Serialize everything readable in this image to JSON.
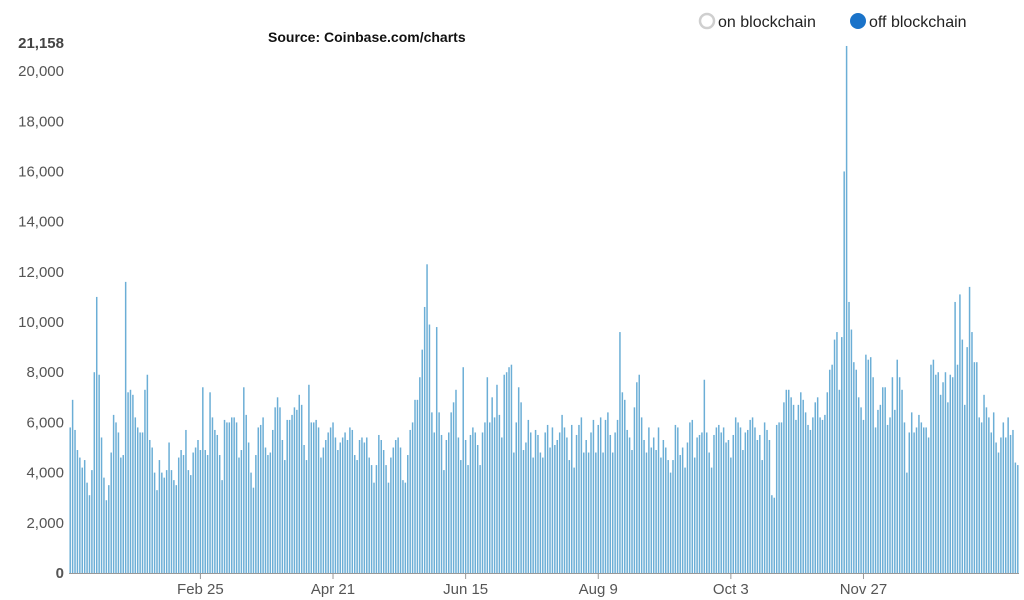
{
  "source_label": "Source: Coinbase.com/charts",
  "legend": [
    {
      "label": "on blockchain",
      "marker": "hollow-circle",
      "color": "#cfcfcf"
    },
    {
      "label": "off blockchain",
      "marker": "filled-circle",
      "color": "#1a73c9"
    }
  ],
  "colors": {
    "bar": "#6baed6",
    "bar_edge": "#4a90c2"
  },
  "chart_data": {
    "type": "bar",
    "series": [
      {
        "name": "off blockchain"
      }
    ],
    "ylim": [
      0,
      21158
    ],
    "y_max_label": "21,158",
    "y_ticks": [
      {
        "value": 0,
        "label": "0"
      },
      {
        "value": 2000,
        "label": "2,000"
      },
      {
        "value": 4000,
        "label": "4,000"
      },
      {
        "value": 6000,
        "label": "6,000"
      },
      {
        "value": 8000,
        "label": "8,000"
      },
      {
        "value": 10000,
        "label": "10,000"
      },
      {
        "value": 12000,
        "label": "12,000"
      },
      {
        "value": 14000,
        "label": "14,000"
      },
      {
        "value": 16000,
        "label": "16,000"
      },
      {
        "value": 18000,
        "label": "18,000"
      },
      {
        "value": 20000,
        "label": "20,000"
      }
    ],
    "x_ticks": [
      {
        "index": 54,
        "label": "Feb 25"
      },
      {
        "index": 109,
        "label": "Apr 21"
      },
      {
        "index": 164,
        "label": "Jun 15"
      },
      {
        "index": 219,
        "label": "Aug 9"
      },
      {
        "index": 274,
        "label": "Oct 3"
      },
      {
        "index": 329,
        "label": "Nov 27"
      }
    ],
    "values": [
      5800,
      6900,
      5700,
      4900,
      4600,
      4200,
      4500,
      3600,
      3100,
      4100,
      8000,
      11000,
      7900,
      5400,
      3800,
      2900,
      3500,
      4800,
      6300,
      6000,
      5600,
      4600,
      4700,
      11600,
      7200,
      7300,
      7100,
      6200,
      5800,
      5600,
      5600,
      7300,
      7900,
      5300,
      5000,
      4000,
      3300,
      4500,
      4000,
      3800,
      4100,
      5200,
      4100,
      3700,
      3500,
      4600,
      4900,
      4700,
      5700,
      4100,
      3900,
      4800,
      5000,
      5300,
      4900,
      7400,
      4900,
      4700,
      7200,
      6200,
      5700,
      5500,
      4700,
      3700,
      6100,
      6000,
      6000,
      6200,
      6200,
      6000,
      4600,
      4900,
      7400,
      6300,
      5200,
      4000,
      3400,
      4700,
      5800,
      5900,
      6200,
      5000,
      4700,
      4800,
      5700,
      6600,
      7000,
      6600,
      5300,
      4500,
      6100,
      6100,
      6300,
      6600,
      6500,
      7100,
      6700,
      5100,
      4500,
      7500,
      6000,
      6000,
      6100,
      5800,
      4600,
      5000,
      5300,
      5600,
      5800,
      6000,
      5400,
      4900,
      5200,
      5400,
      5600,
      5300,
      5800,
      5700,
      4700,
      4500,
      5300,
      5400,
      5200,
      5400,
      4600,
      4300,
      3600,
      4300,
      5500,
      5300,
      4900,
      4300,
      3600,
      4600,
      5000,
      5300,
      5400,
      5000,
      3700,
      3600,
      4700,
      5700,
      6000,
      6900,
      6900,
      7800,
      8900,
      10600,
      12300,
      9900,
      6400,
      5600,
      9800,
      6400,
      5500,
      4100,
      5300,
      5600,
      6400,
      6800,
      7300,
      5400,
      4500,
      8200,
      5300,
      4300,
      5500,
      5800,
      5600,
      5100,
      4300,
      5600,
      6000,
      7800,
      6000,
      7000,
      6200,
      7500,
      6300,
      5400,
      7900,
      8000,
      8200,
      8300,
      4800,
      6000,
      7400,
      6800,
      4900,
      5200,
      6100,
      5600,
      4600,
      5700,
      5500,
      4800,
      4600,
      5600,
      5900,
      5000,
      5800,
      5100,
      5300,
      5600,
      6300,
      5800,
      5400,
      4500,
      5900,
      4200,
      5500,
      5900,
      6200,
      4800,
      5300,
      4800,
      5600,
      6100,
      4800,
      5900,
      6200,
      4800,
      6100,
      6400,
      5500,
      4800,
      5600,
      6100,
      9600,
      7200,
      6900,
      5700,
      5400,
      4900,
      6600,
      7600,
      7900,
      6200,
      5300,
      4800,
      5800,
      5000,
      5400,
      4900,
      5800,
      4600,
      5300,
      5000,
      4500,
      4000,
      4500,
      5900,
      5800,
      4700,
      5000,
      4200,
      5200,
      6000,
      6100,
      4600,
      5400,
      5500,
      5600,
      7700,
      5600,
      4800,
      4200,
      5500,
      5800,
      5900,
      5600,
      5800,
      5200,
      5300,
      4600,
      5500,
      6200,
      6000,
      5800,
      4900,
      5600,
      5700,
      6100,
      6200,
      5800,
      5300,
      5500,
      4500,
      6000,
      5700,
      5300,
      3100,
      3000,
      5900,
      6000,
      6000,
      6800,
      7300,
      7300,
      7000,
      6700,
      6100,
      6700,
      7200,
      6900,
      6400,
      5900,
      5700,
      6200,
      6800,
      7000,
      6200,
      6100,
      6300,
      7200,
      8100,
      8300,
      9300,
      9600,
      7300,
      9400,
      16000,
      21000,
      10800,
      9700,
      8400,
      8100,
      7000,
      6600,
      6100,
      8700,
      8500,
      8600,
      7800,
      5800,
      6500,
      6700,
      7400,
      7400,
      5900,
      6200,
      7800,
      6500,
      8500,
      7800,
      7300,
      6000,
      4000,
      5600,
      6400,
      5600,
      5800,
      6300,
      6000,
      5800,
      5800,
      5400,
      8300,
      8500,
      7900,
      8000,
      7100,
      7600,
      8000,
      6800,
      7900,
      7800,
      10800,
      8300,
      11100,
      9300,
      6700,
      9000,
      11400,
      9600,
      8400,
      8400,
      6200,
      6000,
      7100,
      6600,
      6200,
      5600,
      6400,
      5200,
      4800,
      5400,
      6000,
      5400,
      6200,
      5500,
      5700,
      4400,
      4300
    ]
  }
}
